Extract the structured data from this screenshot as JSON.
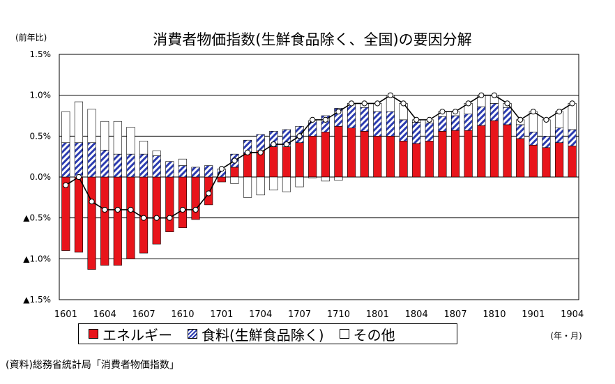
{
  "chart_data": {
    "type": "bar",
    "title": "消費者物価指数(生鮮食品除く、全国)の要因分解",
    "ylabel": "(前年比)",
    "xlabel": "(年・月)",
    "ylim": [
      -1.5,
      1.5
    ],
    "y_ticks": [
      "1.5%",
      "1.0%",
      "0.5%",
      "0.0%",
      "▲0.5%",
      "▲1.0%",
      "▲1.5%"
    ],
    "y_tick_values": [
      1.5,
      1.0,
      0.5,
      0.0,
      -0.5,
      -1.0,
      -1.5
    ],
    "x_tick_labels": [
      "1601",
      "1604",
      "1607",
      "1610",
      "1701",
      "1704",
      "1707",
      "1710",
      "1801",
      "1804",
      "1807",
      "1810",
      "1901",
      "1904"
    ],
    "categories": [
      "1601",
      "1602",
      "1603",
      "1604",
      "1605",
      "1606",
      "1607",
      "1608",
      "1609",
      "1610",
      "1611",
      "1612",
      "1701",
      "1702",
      "1703",
      "1704",
      "1705",
      "1706",
      "1707",
      "1708",
      "1709",
      "1710",
      "1711",
      "1712",
      "1801",
      "1802",
      "1803",
      "1804",
      "1805",
      "1806",
      "1807",
      "1808",
      "1809",
      "1810",
      "1811",
      "1812",
      "1901",
      "1902",
      "1903",
      "1904"
    ],
    "series": [
      {
        "name": "エネルギー",
        "kind": "stacked-bar",
        "values": [
          -0.9,
          -0.92,
          -1.13,
          -1.08,
          -1.08,
          -1.0,
          -0.93,
          -0.82,
          -0.67,
          -0.62,
          -0.52,
          -0.34,
          -0.06,
          0.12,
          0.29,
          0.32,
          0.37,
          0.37,
          0.42,
          0.5,
          0.55,
          0.62,
          0.6,
          0.56,
          0.5,
          0.5,
          0.44,
          0.41,
          0.44,
          0.56,
          0.57,
          0.57,
          0.63,
          0.69,
          0.64,
          0.47,
          0.39,
          0.36,
          0.42,
          0.38
        ]
      },
      {
        "name": "食料(生鮮食品除く)",
        "kind": "stacked-bar",
        "values": [
          0.42,
          0.42,
          0.42,
          0.33,
          0.28,
          0.28,
          0.28,
          0.26,
          0.19,
          0.14,
          0.12,
          0.14,
          0.1,
          0.16,
          0.16,
          0.2,
          0.19,
          0.21,
          0.2,
          0.19,
          0.2,
          0.22,
          0.28,
          0.29,
          0.3,
          0.3,
          0.26,
          0.26,
          0.22,
          0.18,
          0.18,
          0.2,
          0.23,
          0.21,
          0.21,
          0.17,
          0.16,
          0.14,
          0.18,
          0.2
        ]
      },
      {
        "name": "その他",
        "kind": "stacked-bar",
        "values": [
          0.38,
          0.5,
          0.41,
          0.35,
          0.4,
          0.33,
          0.16,
          0.06,
          0.0,
          0.08,
          0.0,
          0.0,
          -0.0,
          -0.08,
          -0.25,
          -0.22,
          -0.16,
          -0.18,
          -0.12,
          -0.01,
          -0.05,
          -0.04,
          0.02,
          0.05,
          0.1,
          0.2,
          0.2,
          0.03,
          0.04,
          0.06,
          0.05,
          0.13,
          0.14,
          0.1,
          0.05,
          0.06,
          0.25,
          0.2,
          0.2,
          0.32
        ]
      },
      {
        "name": "総合",
        "kind": "line",
        "values": [
          -0.1,
          0.0,
          -0.3,
          -0.4,
          -0.4,
          -0.4,
          -0.5,
          -0.5,
          -0.5,
          -0.4,
          -0.4,
          -0.2,
          0.1,
          0.2,
          0.3,
          0.3,
          0.4,
          0.4,
          0.5,
          0.7,
          0.7,
          0.8,
          0.9,
          0.9,
          0.9,
          1.0,
          0.9,
          0.7,
          0.7,
          0.8,
          0.8,
          0.9,
          1.0,
          1.0,
          0.9,
          0.7,
          0.8,
          0.7,
          0.8,
          0.9
        ]
      }
    ],
    "colors": {
      "energy": "#e8141b",
      "food": "#2b3bb0",
      "other": "#ffffff",
      "line": "#000000"
    },
    "grid": true,
    "legend_position": "bottom"
  },
  "legend": {
    "energy": "エネルギー",
    "food": "食料(生鮮食品除く)",
    "other": "その他"
  },
  "source_note": "(資料)総務省統計局「消費者物価指数」"
}
